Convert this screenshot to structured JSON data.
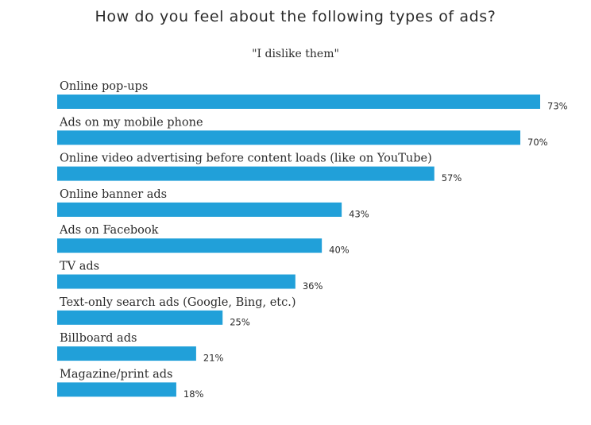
{
  "chart_data": {
    "type": "bar",
    "orientation": "horizontal",
    "title": "How do you feel about the following types of ads?",
    "subtitle": "\"I dislike them\"",
    "categories": [
      "Online pop-ups",
      "Ads on my mobile phone",
      "Online video advertising before content loads (like on YouTube)",
      "Online banner ads",
      "Ads on Facebook",
      "TV ads",
      "Text-only search ads (Google, Bing, etc.)",
      "Billboard ads",
      "Magazine/print ads"
    ],
    "values": [
      73,
      70,
      57,
      43,
      40,
      36,
      25,
      21,
      18
    ],
    "value_labels": [
      "73%",
      "70%",
      "57%",
      "43%",
      "40%",
      "36%",
      "25%",
      "21%",
      "18%"
    ],
    "xlim": [
      0,
      73
    ],
    "xlabel": "",
    "ylabel": "",
    "grid": false,
    "bar_color": "#21a0d9"
  }
}
